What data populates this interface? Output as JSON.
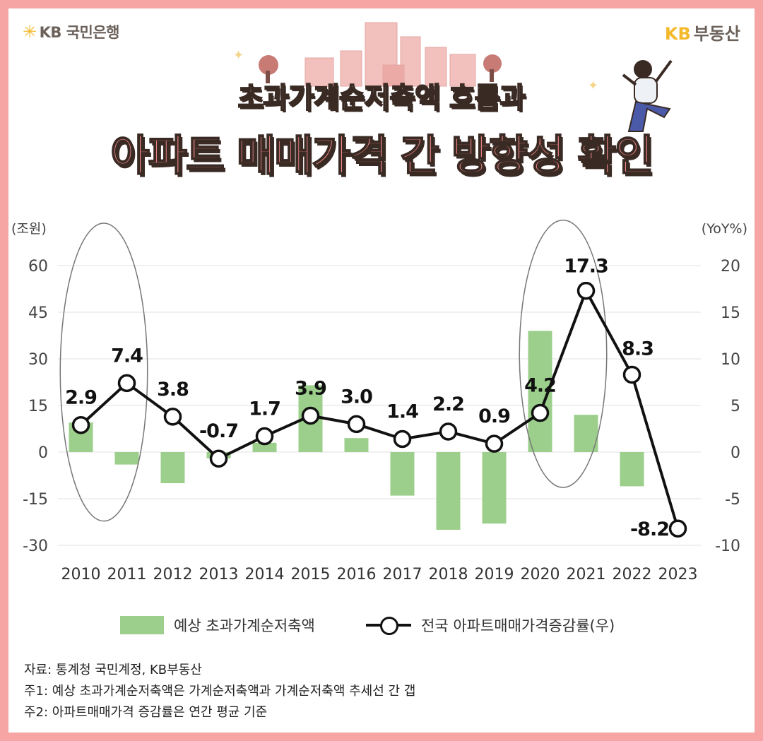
{
  "brand": {
    "left": "KB 국민은행",
    "right_kb": "KB",
    "right_text": "부동산"
  },
  "title": {
    "line1": "초과가계순저축액 흐름과",
    "line2": "아파트 매매가격 간 방향성 확인"
  },
  "colors": {
    "bar": "#9ccf8b",
    "line": "#111111",
    "title_pink": "#f4898a",
    "frame": "#f6a5a4"
  },
  "chart_data": {
    "type": "bar+line",
    "categories": [
      "2010",
      "2011",
      "2012",
      "2013",
      "2014",
      "2015",
      "2016",
      "2017",
      "2018",
      "2019",
      "2020",
      "2021",
      "2022",
      "2023"
    ],
    "y_left": {
      "unit": "(조원)",
      "range": [
        -30,
        60
      ],
      "ticks": [
        60,
        45,
        30,
        15,
        0,
        -15,
        -30
      ]
    },
    "y_right": {
      "unit": "(YoY%)",
      "range": [
        -10,
        20
      ],
      "ticks": [
        20,
        15,
        10,
        5,
        0,
        -5,
        -10
      ]
    },
    "series": [
      {
        "name": "예상 초과가계순저축액",
        "type": "bar",
        "axis": "left",
        "values": [
          9.5,
          -4,
          -10,
          -2,
          3,
          21.5,
          4.5,
          -14,
          -25,
          -23,
          39,
          12,
          -11,
          null
        ]
      },
      {
        "name": "전국 아파트매매가격증감률(우)",
        "type": "line",
        "axis": "right",
        "values": [
          2.9,
          7.4,
          3.8,
          -0.7,
          1.7,
          3.9,
          3.0,
          1.4,
          2.2,
          0.9,
          4.2,
          17.3,
          8.3,
          -8.2
        ],
        "labels": [
          "2.9",
          "7.4",
          "3.8",
          "-0.7",
          "1.7",
          "3.9",
          "3.0",
          "1.4",
          "2.2",
          "0.9",
          "4.2",
          "17.3",
          "8.3",
          "-8.2"
        ]
      }
    ],
    "grid": true,
    "legend": "bottom",
    "highlight_ellipses": [
      [
        "2010",
        "2011"
      ],
      [
        "2020",
        "2021"
      ]
    ]
  },
  "notes": [
    "자료: 통계청 국민계정, KB부동산",
    "주1: 예상 초과가계순저축액은 가계순저축액과 가계순저축액 추세선 간 갭",
    "주2: 아파트매매가격 증감률은 연간 평균 기준"
  ]
}
